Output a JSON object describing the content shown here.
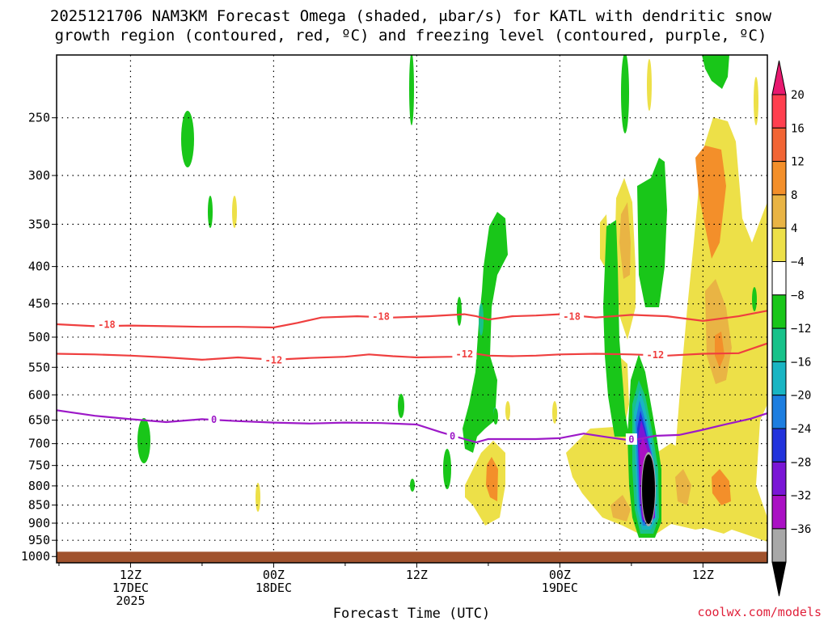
{
  "title": {
    "line1": "2025121706 NAM3KM Forecast Omega (shaded, μbar/s) for KATL with dendritic snow",
    "line2": "growth region (contoured, red, ºC) and freezing level (contoured, purple, ºC)"
  },
  "credit": "coolwx.com/models",
  "chart_data": {
    "type": "heatmap",
    "title": "2025121706 NAM3KM Forecast Omega (shaded, μbar/s) for KATL with dendritic snow growth region (contoured, red, ºC) and freezing level (contoured, purple, ºC)",
    "xlabel": "Forecast Time (UTC)",
    "ylabel": "",
    "x_unit": "hours after 2025-12-17 06Z",
    "xlim": [
      -0.2,
      59.4
    ],
    "y_unit": "hPa",
    "y_scale": "log",
    "ylim": [
      1020,
      205
    ],
    "y_ticks": [
      250,
      300,
      350,
      400,
      450,
      500,
      550,
      600,
      650,
      700,
      750,
      800,
      850,
      900,
      950,
      1000
    ],
    "y_tick_labels": [
      "250",
      "300",
      "350",
      "400",
      "450",
      "500",
      "550",
      "600",
      "650",
      "700",
      "750",
      "800",
      "850",
      "900",
      "950",
      "1000"
    ],
    "x_ticks": [
      {
        "hour": 6,
        "lines": [
          "12Z",
          "17DEC",
          "2025"
        ]
      },
      {
        "hour": 18,
        "lines": [
          "00Z",
          "18DEC"
        ]
      },
      {
        "hour": 30,
        "lines": [
          "12Z"
        ]
      },
      {
        "hour": 42,
        "lines": [
          "00Z",
          "19DEC"
        ]
      },
      {
        "hour": 54,
        "lines": [
          "12Z"
        ]
      }
    ],
    "grid": true,
    "colorbar": {
      "labels": [
        "20",
        "16",
        "12",
        "8",
        "4",
        "−4",
        "−8",
        "−12",
        "−16",
        "−20",
        "−24",
        "−28",
        "−32",
        "−36"
      ],
      "colors": [
        "#ff3f4f",
        "#f26535",
        "#f38f2a",
        "#e9b444",
        "#ede048",
        "#ffffff",
        "#19c619",
        "#18c28a",
        "#19b5c3",
        "#1d7ee0",
        "#2233dc",
        "#7a16d6",
        "#aa10c4",
        "#a8a8a8"
      ],
      "top_arrow_color": "#e8196f",
      "bottom_arrow_color": "#000000"
    },
    "contours": [
      {
        "name": "-18",
        "color": "#ef3f3f",
        "label": "-18",
        "points": [
          [
            -0.2,
            480
          ],
          [
            3,
            483
          ],
          [
            6,
            482
          ],
          [
            9,
            483
          ],
          [
            12,
            484
          ],
          [
            15,
            484
          ],
          [
            18,
            485
          ],
          [
            20,
            478
          ],
          [
            22,
            470
          ],
          [
            25,
            468
          ],
          [
            28,
            470
          ],
          [
            31,
            468
          ],
          [
            34,
            465
          ],
          [
            35,
            468
          ],
          [
            36,
            473
          ],
          [
            38,
            468
          ],
          [
            40,
            467
          ],
          [
            42,
            465
          ],
          [
            45,
            470
          ],
          [
            48,
            466
          ],
          [
            51,
            468
          ],
          [
            54,
            475
          ],
          [
            57,
            468
          ],
          [
            59.4,
            460
          ]
        ],
        "label_at": [
          [
            4,
            480
          ],
          [
            27,
            468
          ],
          [
            43,
            468
          ]
        ]
      },
      {
        "name": "-12",
        "color": "#ef3f3f",
        "label": "-12",
        "points": [
          [
            -0.2,
            527
          ],
          [
            3,
            528
          ],
          [
            6,
            530
          ],
          [
            9,
            533
          ],
          [
            12,
            537
          ],
          [
            15,
            533
          ],
          [
            18,
            537
          ],
          [
            21,
            534
          ],
          [
            24,
            532
          ],
          [
            26,
            528
          ],
          [
            28,
            531
          ],
          [
            30,
            533
          ],
          [
            33,
            532
          ],
          [
            35,
            527
          ],
          [
            36,
            530
          ],
          [
            38,
            531
          ],
          [
            40,
            530
          ],
          [
            42,
            528
          ],
          [
            45,
            527
          ],
          [
            48,
            528
          ],
          [
            51,
            530
          ],
          [
            54,
            527
          ],
          [
            57,
            526
          ],
          [
            59.4,
            510
          ]
        ],
        "label_at": [
          [
            18,
            537
          ],
          [
            34,
            527
          ],
          [
            50,
            528
          ]
        ]
      },
      {
        "name": "0",
        "color": "#9d19c8",
        "label": "0",
        "points": [
          [
            -0.2,
            630
          ],
          [
            3,
            641
          ],
          [
            6,
            648
          ],
          [
            9,
            654
          ],
          [
            12,
            648
          ],
          [
            15,
            652
          ],
          [
            18,
            655
          ],
          [
            21,
            657
          ],
          [
            24,
            655
          ],
          [
            27,
            656
          ],
          [
            30,
            659
          ],
          [
            32,
            675
          ],
          [
            34,
            690
          ],
          [
            35,
            697
          ],
          [
            36,
            690
          ],
          [
            38,
            690
          ],
          [
            40,
            690
          ],
          [
            42,
            688
          ],
          [
            44,
            678
          ],
          [
            46,
            686
          ],
          [
            48,
            693
          ],
          [
            50,
            683
          ],
          [
            52,
            681
          ],
          [
            54,
            670
          ],
          [
            56,
            658
          ],
          [
            58,
            647
          ],
          [
            59.4,
            636
          ]
        ],
        "label_at": [
          [
            13,
            648
          ],
          [
            33,
            683
          ],
          [
            48,
            690
          ]
        ]
      }
    ],
    "omega_cells": [
      {
        "category": "-4 to -8",
        "hour": 11.2,
        "p": 275,
        "color": "#19c619"
      },
      {
        "category": "-4 to -8",
        "hour": 12.9,
        "p": 345,
        "color": "#19c619"
      },
      {
        "category": "4 to 8",
        "hour": 14.9,
        "p": 345,
        "color": "#ede048"
      },
      {
        "category": "-4 to -8",
        "hour": 6.7,
        "p": 720,
        "color": "#19c619"
      },
      {
        "category": "4 to 8",
        "hour": 17.2,
        "p": 860,
        "color": "#ede048"
      },
      {
        "category": "-4 to -8",
        "hour": 29.9,
        "p": 240,
        "color": "#19c619"
      },
      {
        "category": "-4 to -8",
        "hour": 29.8,
        "p": 640,
        "color": "#19c619"
      },
      {
        "category": "-4 to -8",
        "hour": 30.0,
        "p": 830,
        "color": "#19c619"
      },
      {
        "category": "-4 to -8",
        "hour": 32.8,
        "p": 790,
        "color": "#19c619"
      },
      {
        "category": "-4 to -8",
        "hour": 35.5,
        "p": 520,
        "color": "#19c619"
      },
      {
        "category": "4 to 8",
        "hour": 35.6,
        "p": 830,
        "color": "#ede048"
      },
      {
        "category": "12 to 16",
        "hour": 35.9,
        "p": 810,
        "color": "#f38f2a"
      },
      {
        "category": "-4 to -8",
        "hour": 46.2,
        "p": 560,
        "color": "#19c619"
      },
      {
        "category": "4 to 8",
        "hour": 48.0,
        "p": 700,
        "color": "#ede048"
      },
      {
        "category": "8 to 12",
        "hour": 47.2,
        "p": 410,
        "color": "#e9b444"
      },
      {
        "category": "-4 to -8",
        "hour": 48.0,
        "p": 470,
        "color": "#19c619"
      },
      {
        "category": "-12 to -16",
        "hour": 49.0,
        "p": 740,
        "color": "#19b5c3"
      },
      {
        "category": "-24 to -28",
        "hour": 49.2,
        "p": 760,
        "color": "#7a16d6"
      },
      {
        "category": "below -36",
        "hour": 49.6,
        "p": 845,
        "color": "#000000"
      },
      {
        "category": "4 to 8",
        "hour": 54.5,
        "p": 430,
        "color": "#ede048"
      },
      {
        "category": "8 to 12",
        "hour": 55.5,
        "p": 480,
        "color": "#e9b444"
      },
      {
        "category": "12 to 16",
        "hour": 55.5,
        "p": 530,
        "color": "#f38f2a"
      },
      {
        "category": "12 to 16",
        "hour": 55.0,
        "p": 860,
        "color": "#f38f2a"
      },
      {
        "category": "-4 to -8",
        "hour": 54.5,
        "p": 230,
        "color": "#19c619"
      }
    ],
    "ground_color": "#a0522d"
  }
}
